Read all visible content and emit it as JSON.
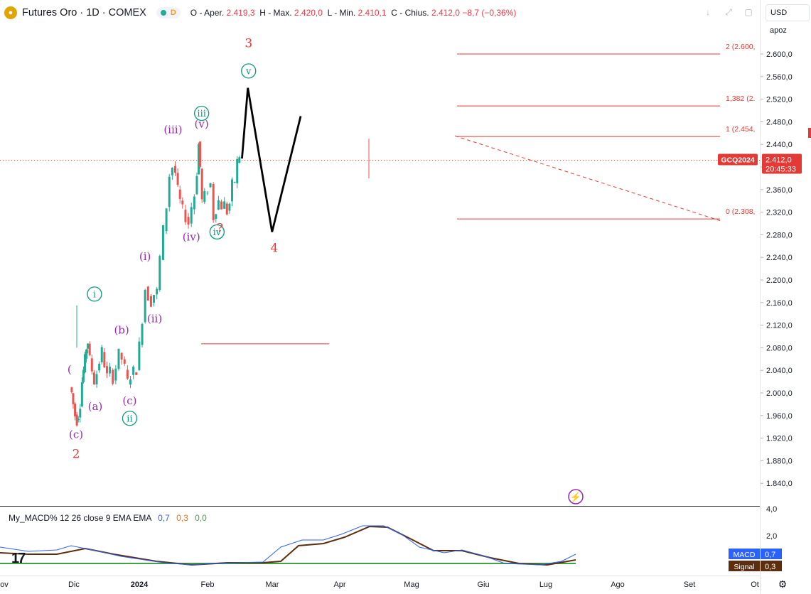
{
  "header": {
    "symbol": "Futures Oro · 1D · COMEX",
    "delay_badge": "D",
    "ohlc": {
      "open_label": "O - Aper.",
      "open": "2.419,3",
      "high_label": "H - Max.",
      "high": "2.420,0",
      "low_label": "L - Min.",
      "low": "2.410,1",
      "close_label": "C - Chius.",
      "close": "2.412,0",
      "change": "−8,7 (−0,36%)"
    }
  },
  "toolbar": {
    "currency": "USD",
    "scale_mode": "apoz"
  },
  "colors": {
    "up": "#22ab94",
    "down": "#ef5350",
    "purple": "#9c27b0",
    "teal": "#089981",
    "red": "#e53935",
    "blue": "#2962ff",
    "brown": "#6d3b17",
    "green": "#43a047"
  },
  "chart_data": {
    "type": "candlestick",
    "title": "Futures Oro · 1D · COMEX",
    "y_axis": {
      "min": 1800,
      "max": 2640,
      "ticks": [
        "1.840,0",
        "1.880,0",
        "1.920,0",
        "1.960,0",
        "2.000,0",
        "2.040,0",
        "2.080,0",
        "2.120,0",
        "2.160,0",
        "2.200,0",
        "2.240,0",
        "2.280,0",
        "2.320,0",
        "2.360,0",
        "2.400,0",
        "2.440,0",
        "2.480,0",
        "2.520,0",
        "2.560,0",
        "2.600,0"
      ]
    },
    "x_axis": {
      "ticks": [
        "ov",
        "Dic",
        "2024",
        "Feb",
        "Mar",
        "Apr",
        "Mag",
        "Giu",
        "Lug",
        "Ago",
        "Set",
        "Ot"
      ]
    },
    "price_path": [
      [
        "2023-11-27",
        2010
      ],
      [
        "2023-11-29",
        2000
      ],
      [
        "2023-12-01",
        1980
      ],
      [
        "2023-12-04",
        1960
      ],
      [
        "2023-12-06",
        1950
      ],
      [
        "2023-12-08",
        1960
      ],
      [
        "2023-12-11",
        1980
      ],
      [
        "2023-12-13",
        2020
      ],
      [
        "2023-12-15",
        2040
      ],
      [
        "2023-12-17",
        2060
      ],
      [
        "2023-12-19",
        2080
      ],
      [
        "2023-12-21",
        2090
      ],
      [
        "2023-12-24",
        2060
      ],
      [
        "2023-12-27",
        2040
      ],
      [
        "2023-12-30",
        2020
      ],
      [
        "2024-01-03",
        2035
      ],
      [
        "2024-01-06",
        2055
      ],
      [
        "2024-01-10",
        2075
      ],
      [
        "2024-01-13",
        2050
      ],
      [
        "2024-01-17",
        2030
      ],
      [
        "2024-01-21",
        2040
      ],
      [
        "2024-01-25",
        2025
      ],
      [
        "2024-01-29",
        2045
      ],
      [
        "2024-02-02",
        2070
      ],
      [
        "2024-02-06",
        2060
      ],
      [
        "2024-02-10",
        2045
      ],
      [
        "2024-02-14",
        2020
      ],
      [
        "2024-02-18",
        2030
      ],
      [
        "2024-02-22",
        2040
      ],
      [
        "2024-02-26",
        2040
      ],
      [
        "2024-03-01",
        2085
      ],
      [
        "2024-03-05",
        2130
      ],
      [
        "2024-03-09",
        2185
      ],
      [
        "2024-03-13",
        2170
      ],
      [
        "2024-03-17",
        2160
      ],
      [
        "2024-03-21",
        2175
      ],
      [
        "2024-03-25",
        2180
      ],
      [
        "2024-03-29",
        2240
      ],
      [
        "2024-04-03",
        2290
      ],
      [
        "2024-04-07",
        2330
      ],
      [
        "2024-04-11",
        2385
      ],
      [
        "2024-04-15",
        2400
      ],
      [
        "2024-04-19",
        2390
      ],
      [
        "2024-04-22",
        2360
      ],
      [
        "2024-04-25",
        2340
      ],
      [
        "2024-04-29",
        2325
      ],
      [
        "2024-05-03",
        2310
      ],
      [
        "2024-05-07",
        2300
      ],
      [
        "2024-05-11",
        2330
      ],
      [
        "2024-05-15",
        2350
      ],
      [
        "2024-05-18",
        2390
      ],
      [
        "2024-05-20",
        2440
      ],
      [
        "2024-05-22",
        2400
      ],
      [
        "2024-05-25",
        2340
      ],
      [
        "2024-05-29",
        2350
      ],
      [
        "2024-06-02",
        2360
      ],
      [
        "2024-06-06",
        2370
      ],
      [
        "2024-06-10",
        2310
      ],
      [
        "2024-06-13",
        2325
      ],
      [
        "2024-06-17",
        2340
      ],
      [
        "2024-06-21",
        2330
      ],
      [
        "2024-06-25",
        2335
      ],
      [
        "2024-06-28",
        2320
      ],
      [
        "2024-07-02",
        2335
      ],
      [
        "2024-07-05",
        2370
      ],
      [
        "2024-07-09",
        2375
      ],
      [
        "2024-07-12",
        2410
      ],
      [
        "2024-07-15",
        2420
      ]
    ],
    "projection_path": [
      [
        "2024-07-17",
        2415
      ],
      [
        "2024-07-25",
        2540
      ],
      [
        "2024-08-27",
        2285
      ],
      [
        "2024-10-05",
        2490
      ]
    ],
    "fib_levels": [
      {
        "label": "2 (2.600,",
        "value": 2600
      },
      {
        "label": "1,382 (2.",
        "value": 2508
      },
      {
        "label": "1 (2.454,",
        "value": 2454
      },
      {
        "label": "0 (2.308,",
        "value": 2308
      }
    ],
    "b_level": 2087,
    "wave_labels": [
      {
        "text": "(c)",
        "date": "2023-12-04",
        "price": 1920,
        "style": "purple"
      },
      {
        "text": "2",
        "date": "2023-12-04",
        "price": 1885,
        "style": "red"
      },
      {
        "text": "i",
        "date": "2023-12-29",
        "price": 2175,
        "style": "teal-circle"
      },
      {
        "text": "(a)",
        "date": "2023-12-30",
        "price": 1970,
        "style": "purple"
      },
      {
        "text": "(b)",
        "date": "2024-02-04",
        "price": 2105,
        "style": "purple"
      },
      {
        "text": "(c)",
        "date": "2024-02-15",
        "price": 1980,
        "style": "purple"
      },
      {
        "text": "ii",
        "date": "2024-02-15",
        "price": 1955,
        "style": "teal-circle"
      },
      {
        "text": "(i)",
        "date": "2024-03-07",
        "price": 2235,
        "style": "purple"
      },
      {
        "text": "(ii)",
        "date": "2024-03-20",
        "price": 2125,
        "style": "purple"
      },
      {
        "text": "(iii)",
        "date": "2024-04-14",
        "price": 2460,
        "style": "purple"
      },
      {
        "text": "(iv)",
        "date": "2024-05-09",
        "price": 2270,
        "style": "purple"
      },
      {
        "text": "iii",
        "date": "2024-05-23",
        "price": 2495,
        "style": "teal-circle"
      },
      {
        "text": "(v)",
        "date": "2024-05-23",
        "price": 2470,
        "style": "purple"
      },
      {
        "text": "iv",
        "date": "2024-06-13",
        "price": 2285,
        "style": "teal-circle"
      },
      {
        "text": "?",
        "date": "2024-06-17",
        "price": 2285,
        "style": "red"
      },
      {
        "text": "v",
        "date": "2024-07-26",
        "price": 2570,
        "style": "teal-circle"
      },
      {
        "text": "3",
        "date": "2024-07-26",
        "price": 2612,
        "style": "red"
      },
      {
        "text": "4",
        "date": "2024-08-30",
        "price": 2250,
        "style": "red"
      },
      {
        "text": "(",
        "date": "2023-11-25",
        "price": 2035,
        "style": "purple"
      }
    ],
    "last_price": {
      "symbol": "GCQ2024",
      "price": "2.412,0",
      "countdown": "20:45:33"
    }
  },
  "macd": {
    "label": "My_MACD% 12 26 close 9 EMA EMA",
    "v1": "0,7",
    "v2": "0,3",
    "v3": "0,0",
    "y_ticks": [
      "4,0",
      "2,0"
    ],
    "tag_macd": "MACD",
    "tag_macd_val": "0,7",
    "tag_signal": "Signal",
    "tag_signal_val": "0,3"
  }
}
